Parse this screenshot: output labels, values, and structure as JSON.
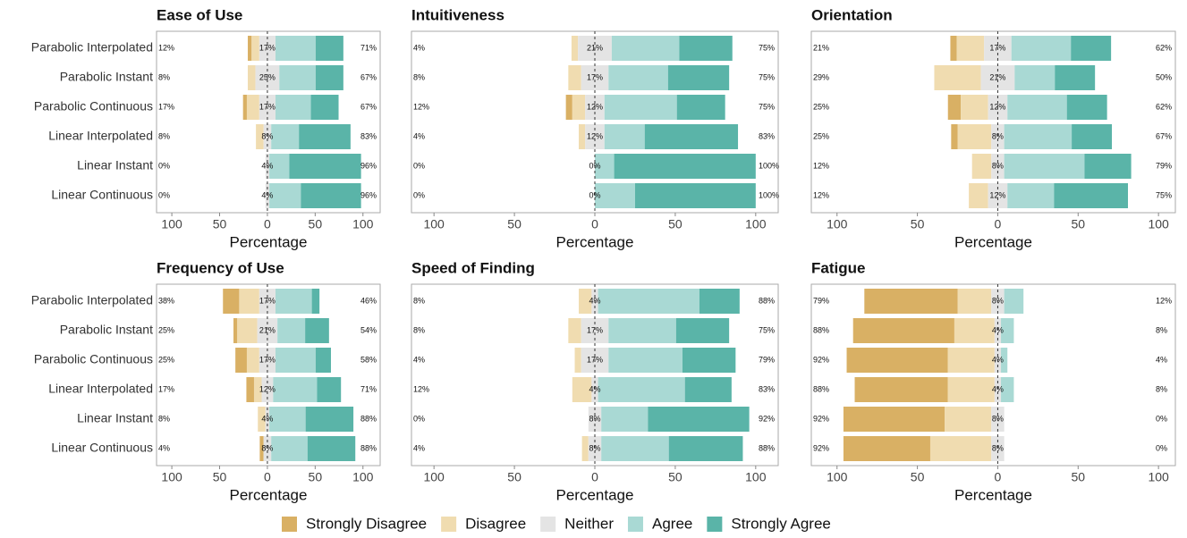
{
  "chart_data": [
    {
      "type": "likert",
      "title": "Ease of Use",
      "categories": [
        "Parabolic Interpolated",
        "Parabolic Instant",
        "Parabolic Continuous",
        "Linear Interpolated",
        "Linear Instant",
        "Linear Continuous"
      ],
      "xlabel": "Percentage",
      "xlim": [
        -116,
        118
      ],
      "xticks": [
        {
          "value": -100,
          "label": "100"
        },
        {
          "value": -50,
          "label": "50"
        },
        0,
        50,
        100
      ],
      "series": [
        {
          "name": "Strongly Disagree",
          "color": "#d9b064",
          "values": [
            4,
            0,
            4,
            0,
            0,
            0
          ]
        },
        {
          "name": "Disagree",
          "color": "#f0dcb0",
          "values": [
            8,
            8,
            13,
            8,
            0,
            0
          ]
        },
        {
          "name": "Neither",
          "color": "#e4e4e4",
          "values": [
            17,
            25,
            17,
            8,
            4,
            4
          ]
        },
        {
          "name": "Agree",
          "color": "#a9d9d4",
          "values": [
            42,
            38,
            37,
            29,
            21,
            33
          ]
        },
        {
          "name": "Strongly Agree",
          "color": "#5ab4a8",
          "values": [
            29,
            29,
            29,
            54,
            75,
            63
          ]
        }
      ],
      "low_labels": [
        "12%",
        "8%",
        "17%",
        "8%",
        "0%",
        "0%"
      ],
      "neutral_labels": [
        "17%",
        "25%",
        "17%",
        "8%",
        "4%",
        "4%"
      ],
      "high_labels": [
        "71%",
        "67%",
        "67%",
        "83%",
        "96%",
        "96%"
      ]
    },
    {
      "type": "likert",
      "title": "Intuitiveness",
      "xlabel": "Percentage",
      "xlim": [
        -114,
        114
      ],
      "xticks": [
        {
          "value": -100,
          "label": "100"
        },
        {
          "value": -50,
          "label": "50"
        },
        0,
        50,
        100
      ],
      "series": [
        {
          "name": "Strongly Disagree",
          "color": "#d9b064",
          "values": [
            0,
            0,
            4,
            0,
            0,
            0
          ]
        },
        {
          "name": "Disagree",
          "color": "#f0dcb0",
          "values": [
            4,
            8,
            8,
            4,
            0,
            0
          ]
        },
        {
          "name": "Neither",
          "color": "#e4e4e4",
          "values": [
            21,
            17,
            12,
            12,
            0,
            0
          ]
        },
        {
          "name": "Agree",
          "color": "#a9d9d4",
          "values": [
            42,
            37,
            45,
            25,
            12,
            25
          ]
        },
        {
          "name": "Strongly Agree",
          "color": "#5ab4a8",
          "values": [
            33,
            38,
            30,
            58,
            88,
            75
          ]
        }
      ],
      "low_labels": [
        "4%",
        "8%",
        "12%",
        "4%",
        "0%",
        "0%"
      ],
      "neutral_labels": [
        "21%",
        "17%",
        "12%",
        "12%",
        "0%",
        "0%"
      ],
      "high_labels": [
        "75%",
        "75%",
        "75%",
        "83%",
        "100%",
        "100%"
      ]
    },
    {
      "type": "likert",
      "title": "Orientation",
      "xlabel": "Percentage",
      "xlim": [
        -116,
        110.5
      ],
      "xticks": [
        {
          "value": -100,
          "label": "100"
        },
        {
          "value": -50,
          "label": "50"
        },
        0,
        50,
        100
      ],
      "series": [
        {
          "name": "Strongly Disagree",
          "color": "#d9b064",
          "values": [
            4,
            0,
            8,
            4,
            0,
            0
          ]
        },
        {
          "name": "Disagree",
          "color": "#f0dcb0",
          "values": [
            17,
            29,
            17,
            21,
            12,
            12
          ]
        },
        {
          "name": "Neither",
          "color": "#e4e4e4",
          "values": [
            17,
            21,
            12,
            8,
            8,
            12
          ]
        },
        {
          "name": "Agree",
          "color": "#a9d9d4",
          "values": [
            37,
            25,
            37,
            42,
            50,
            29
          ]
        },
        {
          "name": "Strongly Agree",
          "color": "#5ab4a8",
          "values": [
            25,
            25,
            25,
            25,
            29,
            46
          ]
        }
      ],
      "low_labels": [
        "21%",
        "29%",
        "25%",
        "25%",
        "12%",
        "12%"
      ],
      "neutral_labels": [
        "17%",
        "21%",
        "12%",
        "8%",
        "8%",
        "12%"
      ],
      "high_labels": [
        "62%",
        "50%",
        "62%",
        "67%",
        "79%",
        "75%"
      ]
    },
    {
      "type": "likert",
      "title": "Frequency of Use",
      "categories": [
        "Parabolic Interpolated",
        "Parabolic Instant",
        "Parabolic Continuous",
        "Linear Interpolated",
        "Linear Instant",
        "Linear Continuous"
      ],
      "xlabel": "Percentage",
      "xlim": [
        -116,
        118
      ],
      "xticks": [
        {
          "value": -100,
          "label": "100"
        },
        {
          "value": -50,
          "label": "50"
        },
        0,
        50,
        100
      ],
      "series": [
        {
          "name": "Strongly Disagree",
          "color": "#d9b064",
          "values": [
            17,
            4,
            12,
            8,
            0,
            4
          ]
        },
        {
          "name": "Disagree",
          "color": "#f0dcb0",
          "values": [
            21,
            21,
            13,
            8,
            8,
            0
          ]
        },
        {
          "name": "Neither",
          "color": "#e4e4e4",
          "values": [
            17,
            21,
            17,
            12,
            4,
            8
          ]
        },
        {
          "name": "Agree",
          "color": "#a9d9d4",
          "values": [
            38,
            29,
            42,
            46,
            38,
            38
          ]
        },
        {
          "name": "Strongly Agree",
          "color": "#5ab4a8",
          "values": [
            8,
            25,
            16,
            25,
            50,
            50
          ]
        }
      ],
      "low_labels": [
        "38%",
        "25%",
        "25%",
        "17%",
        "8%",
        "4%"
      ],
      "neutral_labels": [
        "17%",
        "21%",
        "17%",
        "12%",
        "4%",
        "8%"
      ],
      "high_labels": [
        "46%",
        "54%",
        "58%",
        "71%",
        "88%",
        "88%"
      ]
    },
    {
      "type": "likert",
      "title": "Speed of Finding",
      "xlabel": "Percentage",
      "xlim": [
        -114,
        114
      ],
      "xticks": [
        {
          "value": -100,
          "label": "100"
        },
        {
          "value": -50,
          "label": "50"
        },
        0,
        50,
        100
      ],
      "series": [
        {
          "name": "Strongly Disagree",
          "color": "#d9b064",
          "values": [
            0,
            0,
            0,
            0,
            0,
            0
          ]
        },
        {
          "name": "Disagree",
          "color": "#f0dcb0",
          "values": [
            8,
            8,
            4,
            12,
            0,
            4
          ]
        },
        {
          "name": "Neither",
          "color": "#e4e4e4",
          "values": [
            4,
            17,
            17,
            4,
            8,
            8
          ]
        },
        {
          "name": "Agree",
          "color": "#a9d9d4",
          "values": [
            63,
            42,
            46,
            54,
            29,
            42
          ]
        },
        {
          "name": "Strongly Agree",
          "color": "#5ab4a8",
          "values": [
            25,
            33,
            33,
            29,
            63,
            46
          ]
        }
      ],
      "low_labels": [
        "8%",
        "8%",
        "4%",
        "12%",
        "0%",
        "4%"
      ],
      "neutral_labels": [
        "4%",
        "17%",
        "17%",
        "4%",
        "8%",
        "8%"
      ],
      "high_labels": [
        "88%",
        "75%",
        "79%",
        "83%",
        "92%",
        "88%"
      ]
    },
    {
      "type": "likert",
      "title": "Fatigue",
      "xlabel": "Percentage",
      "xlim": [
        -116,
        110.5
      ],
      "xticks": [
        {
          "value": -100,
          "label": "100"
        },
        {
          "value": -50,
          "label": "50"
        },
        0,
        50,
        100
      ],
      "series": [
        {
          "name": "Strongly Disagree",
          "color": "#d9b064",
          "values": [
            58,
            63,
            63,
            58,
            63,
            54
          ]
        },
        {
          "name": "Disagree",
          "color": "#f0dcb0",
          "values": [
            21,
            25,
            29,
            29,
            29,
            38
          ]
        },
        {
          "name": "Neither",
          "color": "#e4e4e4",
          "values": [
            8,
            4,
            4,
            4,
            8,
            8
          ]
        },
        {
          "name": "Agree",
          "color": "#a9d9d4",
          "values": [
            12,
            8,
            4,
            8,
            0,
            0
          ]
        },
        {
          "name": "Strongly Agree",
          "color": "#5ab4a8",
          "values": [
            0,
            0,
            0,
            0,
            0,
            0
          ]
        }
      ],
      "low_labels": [
        "79%",
        "88%",
        "92%",
        "88%",
        "92%",
        "92%"
      ],
      "neutral_labels": [
        "8%",
        "4%",
        "4%",
        "4%",
        "8%",
        "8%"
      ],
      "high_labels": [
        "12%",
        "8%",
        "4%",
        "8%",
        "0%",
        "0%"
      ]
    }
  ]
}
